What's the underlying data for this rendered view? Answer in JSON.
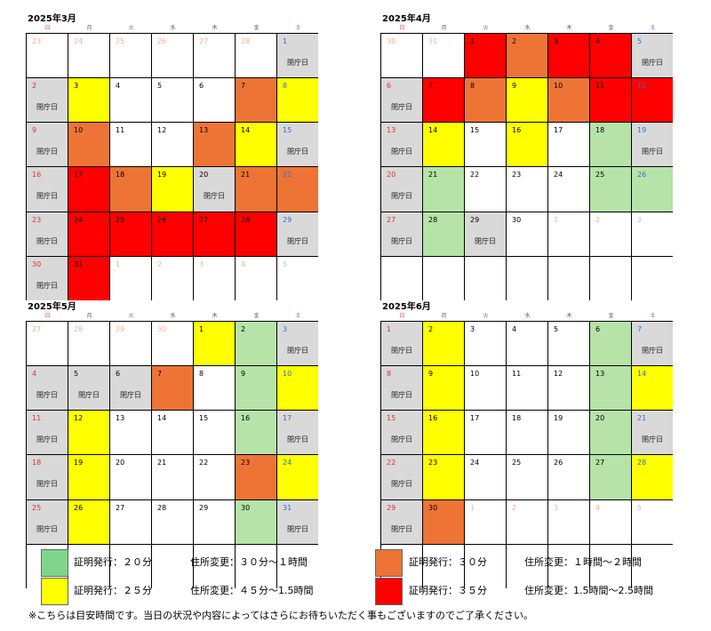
{
  "weekdays": [
    "日",
    "月",
    "火",
    "水",
    "木",
    "金",
    "土"
  ],
  "closed_label": "閉庁日",
  "colors": {
    "white": "#ffffff",
    "gray": "#d9d9d9",
    "green": "#b6e3a8",
    "yellow": "#ffff00",
    "orange": "#ee7436",
    "red": "#ff0000"
  },
  "calendars": [
    {
      "title": "2025年3月",
      "cells": [
        [
          "23",
          "w",
          0,
          1
        ],
        [
          "24",
          "w",
          0,
          1
        ],
        [
          "25",
          "w",
          0,
          1
        ],
        [
          "26",
          "w",
          0,
          1
        ],
        [
          "27",
          "w",
          0,
          1
        ],
        [
          "28",
          "w",
          0,
          1
        ],
        [
          "1",
          "gray",
          1,
          0
        ],
        [
          "2",
          "gray",
          1,
          0
        ],
        [
          "3",
          "yellow",
          0,
          0
        ],
        [
          "4",
          "w",
          0,
          0
        ],
        [
          "5",
          "w",
          0,
          0
        ],
        [
          "6",
          "w",
          0,
          0
        ],
        [
          "7",
          "orange",
          0,
          0
        ],
        [
          "8",
          "yellow",
          0,
          0
        ],
        [
          "9",
          "gray",
          1,
          0
        ],
        [
          "10",
          "orange",
          0,
          0
        ],
        [
          "11",
          "w",
          0,
          0
        ],
        [
          "12",
          "w",
          0,
          0
        ],
        [
          "13",
          "orange",
          0,
          0
        ],
        [
          "14",
          "yellow",
          0,
          0
        ],
        [
          "15",
          "gray",
          1,
          0
        ],
        [
          "16",
          "gray",
          1,
          0
        ],
        [
          "17",
          "red",
          0,
          0
        ],
        [
          "18",
          "orange",
          0,
          0
        ],
        [
          "19",
          "yellow",
          0,
          0
        ],
        [
          "20",
          "gray",
          1,
          0
        ],
        [
          "21",
          "orange",
          0,
          0
        ],
        [
          "22",
          "orange",
          0,
          0
        ],
        [
          "23",
          "gray",
          1,
          0
        ],
        [
          "24",
          "red",
          0,
          0
        ],
        [
          "25",
          "red",
          0,
          0
        ],
        [
          "26",
          "red",
          0,
          0
        ],
        [
          "27",
          "red",
          0,
          0
        ],
        [
          "28",
          "red",
          0,
          0
        ],
        [
          "29",
          "gray",
          1,
          0
        ],
        [
          "30",
          "gray",
          1,
          0
        ],
        [
          "31",
          "red",
          0,
          0
        ],
        [
          "1",
          "w",
          0,
          1
        ],
        [
          "2",
          "w",
          0,
          1
        ],
        [
          "3",
          "w",
          0,
          1
        ],
        [
          "4",
          "w",
          0,
          1
        ],
        [
          "5",
          "w",
          0,
          1
        ]
      ]
    },
    {
      "title": "2025年4月",
      "cells": [
        [
          "30",
          "w",
          0,
          1
        ],
        [
          "31",
          "w",
          0,
          1
        ],
        [
          "1",
          "red",
          0,
          0
        ],
        [
          "2",
          "orange",
          0,
          0
        ],
        [
          "3",
          "red",
          0,
          0
        ],
        [
          "4",
          "red",
          0,
          0
        ],
        [
          "5",
          "gray",
          1,
          0
        ],
        [
          "6",
          "gray",
          1,
          0
        ],
        [
          "7",
          "red",
          0,
          0
        ],
        [
          "8",
          "orange",
          0,
          0
        ],
        [
          "9",
          "yellow",
          0,
          0
        ],
        [
          "10",
          "orange",
          0,
          0
        ],
        [
          "11",
          "red",
          0,
          0
        ],
        [
          "12",
          "red",
          0,
          0
        ],
        [
          "13",
          "gray",
          1,
          0
        ],
        [
          "14",
          "yellow",
          0,
          0
        ],
        [
          "15",
          "w",
          0,
          0
        ],
        [
          "16",
          "yellow",
          0,
          0
        ],
        [
          "17",
          "w",
          0,
          0
        ],
        [
          "18",
          "green",
          0,
          0
        ],
        [
          "19",
          "gray",
          1,
          0
        ],
        [
          "20",
          "gray",
          1,
          0
        ],
        [
          "21",
          "green",
          0,
          0
        ],
        [
          "22",
          "w",
          0,
          0
        ],
        [
          "23",
          "w",
          0,
          0
        ],
        [
          "24",
          "w",
          0,
          0
        ],
        [
          "25",
          "green",
          0,
          0
        ],
        [
          "26",
          "green",
          0,
          0
        ],
        [
          "27",
          "gray",
          1,
          0
        ],
        [
          "28",
          "green",
          0,
          0
        ],
        [
          "29",
          "gray",
          1,
          0
        ],
        [
          "30",
          "w",
          0,
          0
        ],
        [
          "1",
          "w",
          0,
          1
        ],
        [
          "2",
          "w",
          0,
          1
        ],
        [
          "3",
          "w",
          0,
          1
        ],
        [
          "",
          "w",
          0,
          0
        ],
        [
          "",
          "w",
          0,
          0
        ],
        [
          "",
          "w",
          0,
          0
        ],
        [
          "",
          "w",
          0,
          0
        ],
        [
          "",
          "w",
          0,
          0
        ],
        [
          "",
          "w",
          0,
          0
        ],
        [
          "",
          "w",
          0,
          0
        ]
      ]
    },
    {
      "title": "2025年5月",
      "cells": [
        [
          "27",
          "w",
          0,
          1
        ],
        [
          "28",
          "w",
          0,
          1
        ],
        [
          "29",
          "w",
          0,
          1
        ],
        [
          "30",
          "w",
          0,
          1
        ],
        [
          "1",
          "yellow",
          0,
          0
        ],
        [
          "2",
          "green",
          0,
          0
        ],
        [
          "3",
          "gray",
          1,
          0
        ],
        [
          "4",
          "gray",
          1,
          0
        ],
        [
          "5",
          "gray",
          1,
          0
        ],
        [
          "6",
          "gray",
          1,
          0
        ],
        [
          "7",
          "orange",
          0,
          0
        ],
        [
          "8",
          "w",
          0,
          0
        ],
        [
          "9",
          "green",
          0,
          0
        ],
        [
          "10",
          "yellow",
          0,
          0
        ],
        [
          "11",
          "gray",
          1,
          0
        ],
        [
          "12",
          "yellow",
          0,
          0
        ],
        [
          "13",
          "w",
          0,
          0
        ],
        [
          "14",
          "w",
          0,
          0
        ],
        [
          "15",
          "w",
          0,
          0
        ],
        [
          "16",
          "green",
          0,
          0
        ],
        [
          "17",
          "gray",
          1,
          0
        ],
        [
          "18",
          "gray",
          1,
          0
        ],
        [
          "19",
          "yellow",
          0,
          0
        ],
        [
          "20",
          "w",
          0,
          0
        ],
        [
          "21",
          "w",
          0,
          0
        ],
        [
          "22",
          "w",
          0,
          0
        ],
        [
          "23",
          "orange",
          0,
          0
        ],
        [
          "24",
          "yellow",
          0,
          0
        ],
        [
          "25",
          "gray",
          1,
          0
        ],
        [
          "26",
          "yellow",
          0,
          0
        ],
        [
          "27",
          "w",
          0,
          0
        ],
        [
          "28",
          "w",
          0,
          0
        ],
        [
          "29",
          "w",
          0,
          0
        ],
        [
          "30",
          "green",
          0,
          0
        ],
        [
          "31",
          "gray",
          1,
          0
        ],
        [
          "",
          "w",
          0,
          0
        ],
        [
          "",
          "w",
          0,
          0
        ],
        [
          "",
          "w",
          0,
          0
        ],
        [
          "",
          "w",
          0,
          0
        ],
        [
          "",
          "w",
          0,
          0
        ],
        [
          "",
          "w",
          0,
          0
        ],
        [
          "",
          "w",
          0,
          0
        ]
      ]
    },
    {
      "title": "2025年6月",
      "cells": [
        [
          "1",
          "gray",
          1,
          0
        ],
        [
          "2",
          "yellow",
          0,
          0
        ],
        [
          "3",
          "w",
          0,
          0
        ],
        [
          "4",
          "w",
          0,
          0
        ],
        [
          "5",
          "w",
          0,
          0
        ],
        [
          "6",
          "green",
          0,
          0
        ],
        [
          "7",
          "gray",
          1,
          0
        ],
        [
          "8",
          "gray",
          1,
          0
        ],
        [
          "9",
          "yellow",
          0,
          0
        ],
        [
          "10",
          "w",
          0,
          0
        ],
        [
          "11",
          "w",
          0,
          0
        ],
        [
          "12",
          "w",
          0,
          0
        ],
        [
          "13",
          "green",
          0,
          0
        ],
        [
          "14",
          "yellow",
          0,
          0
        ],
        [
          "15",
          "gray",
          1,
          0
        ],
        [
          "16",
          "yellow",
          0,
          0
        ],
        [
          "17",
          "w",
          0,
          0
        ],
        [
          "18",
          "w",
          0,
          0
        ],
        [
          "19",
          "w",
          0,
          0
        ],
        [
          "20",
          "green",
          0,
          0
        ],
        [
          "21",
          "gray",
          1,
          0
        ],
        [
          "22",
          "gray",
          1,
          0
        ],
        [
          "23",
          "yellow",
          0,
          0
        ],
        [
          "24",
          "w",
          0,
          0
        ],
        [
          "25",
          "w",
          0,
          0
        ],
        [
          "26",
          "w",
          0,
          0
        ],
        [
          "27",
          "green",
          0,
          0
        ],
        [
          "28",
          "yellow",
          0,
          0
        ],
        [
          "29",
          "gray",
          1,
          0
        ],
        [
          "30",
          "orange",
          0,
          0
        ],
        [
          "1",
          "w",
          0,
          1
        ],
        [
          "2",
          "w",
          0,
          1
        ],
        [
          "3",
          "w",
          0,
          1
        ],
        [
          "4",
          "w",
          0,
          1
        ],
        [
          "5",
          "w",
          0,
          1
        ],
        [
          "",
          "w",
          0,
          0
        ],
        [
          "",
          "w",
          0,
          0
        ],
        [
          "",
          "w",
          0,
          0
        ],
        [
          "",
          "w",
          0,
          0
        ],
        [
          "",
          "w",
          0,
          0
        ],
        [
          "",
          "w",
          0,
          0
        ],
        [
          "",
          "w",
          0,
          0
        ]
      ]
    }
  ],
  "legend": [
    {
      "color": "green",
      "cert": "証明発行：２０分",
      "addr": "住所変更：３０分～１時間"
    },
    {
      "color": "yellow",
      "cert": "証明発行：２５分",
      "addr": "住所変更：４５分～1.5時間"
    },
    {
      "color": "orange",
      "cert": "証明発行：３０分",
      "addr": "住所変更：１時間～２時間"
    },
    {
      "color": "red",
      "cert": "証明発行：３５分",
      "addr": "住所変更：1.5時間～2.5時間"
    }
  ],
  "note": "※こちらは目安時間です。当日の状況や内容によってはさらにお待ちいただく事もございますのでご了承ください。"
}
